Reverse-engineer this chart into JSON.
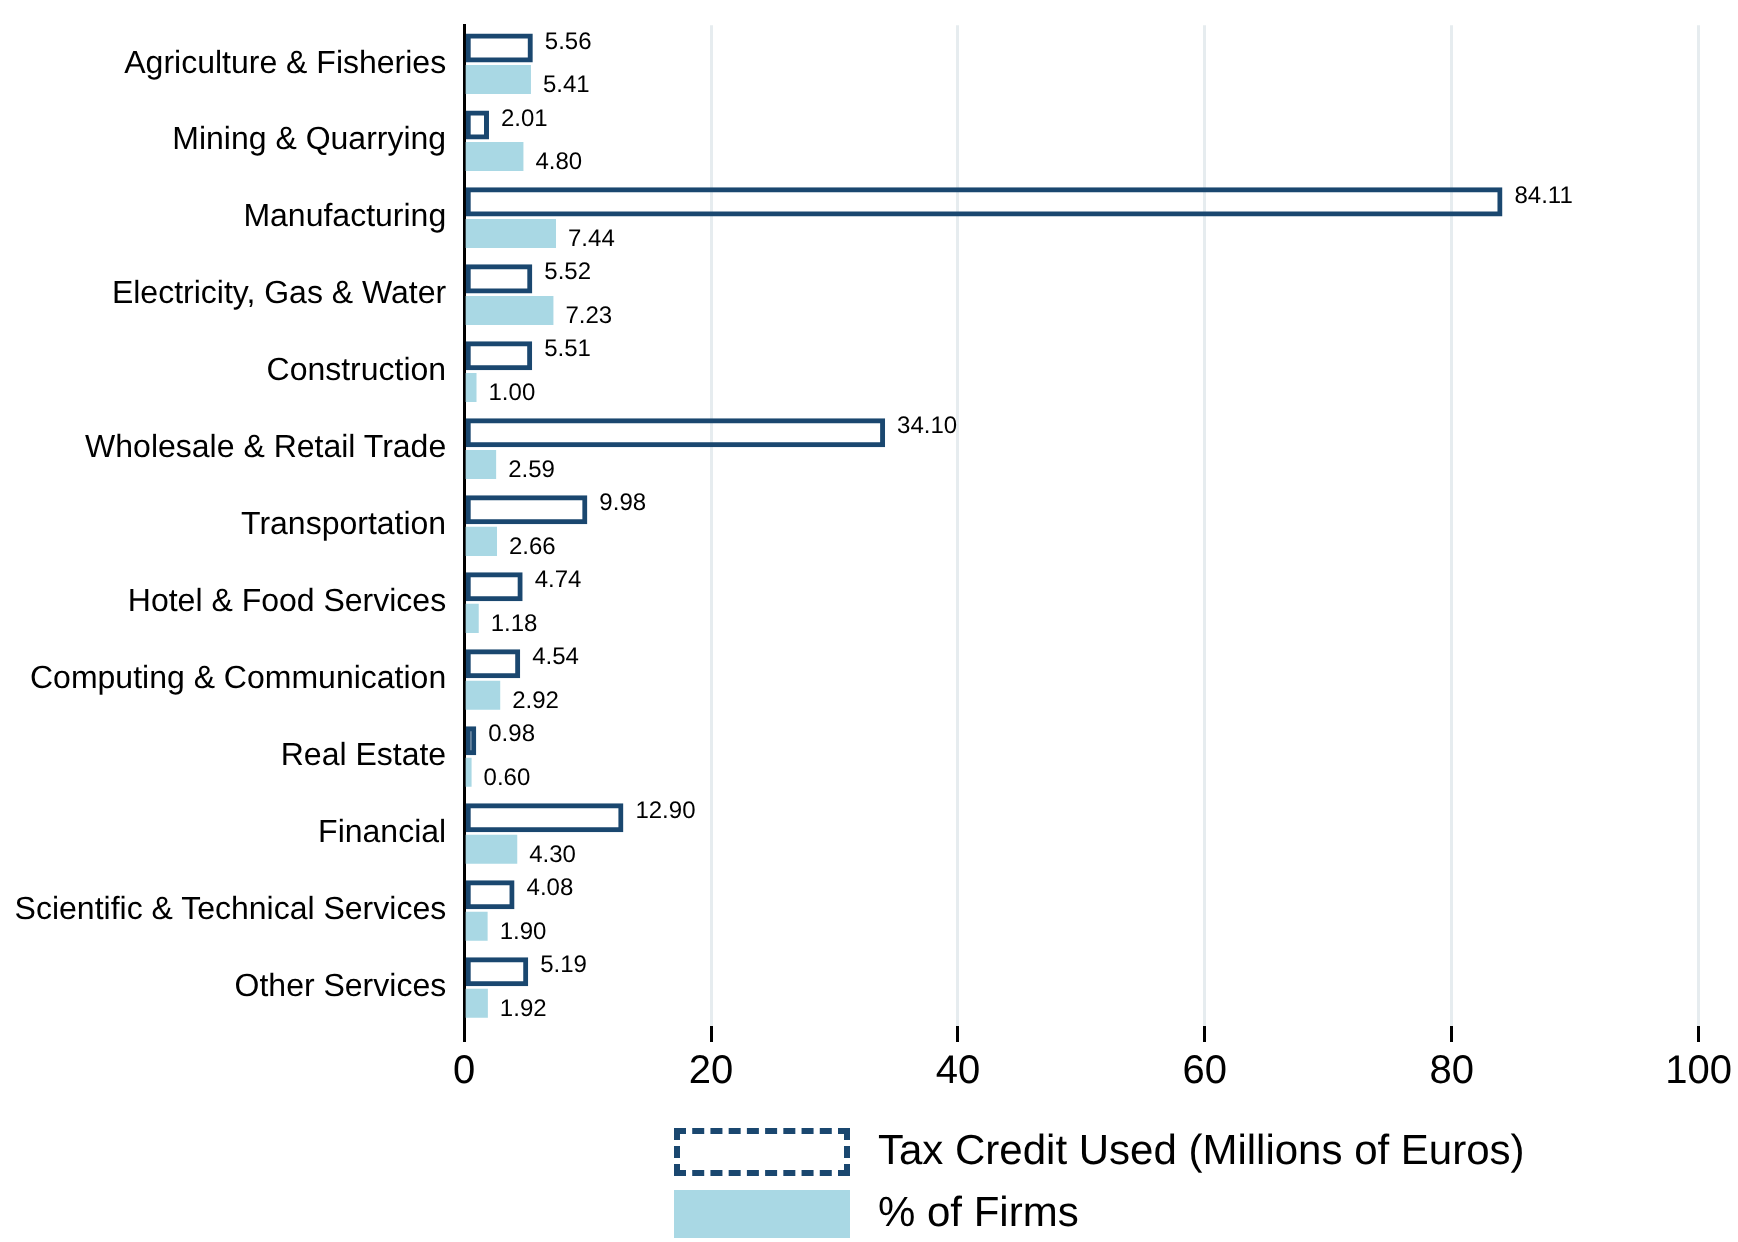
{
  "chart_data": {
    "type": "bar",
    "orientation": "horizontal",
    "categories": [
      "Agriculture & Fisheries",
      "Mining & Quarrying",
      "Manufacturing",
      "Electricity, Gas & Water",
      "Construction",
      "Wholesale & Retail Trade",
      "Transportation",
      "Hotel & Food Services",
      "Computing & Communication",
      "Real Estate",
      "Financial",
      "Scientific & Technical Services",
      "Other Services"
    ],
    "series": [
      {
        "name": "Tax Credit Used (Millions of Euros)",
        "color": "#1a476f",
        "line_style": "dashed",
        "values": [
          5.56,
          2.01,
          84.11,
          5.52,
          5.51,
          34.1,
          9.98,
          4.74,
          4.54,
          0.98,
          12.9,
          4.08,
          5.19
        ],
        "value_labels": [
          "5.56",
          "2.01",
          "84.11",
          "5.52",
          "5.51",
          "34.10",
          "9.98",
          "4.74",
          "4.54",
          "0.98",
          "12.90",
          "4.08",
          "5.19"
        ]
      },
      {
        "name": "% of Firms",
        "color": "#a9d8e4",
        "values": [
          5.41,
          4.8,
          7.44,
          7.23,
          1.0,
          2.59,
          2.66,
          1.18,
          2.92,
          0.6,
          4.3,
          1.9,
          1.92
        ],
        "value_labels": [
          "5.41",
          "4.80",
          "7.44",
          "7.23",
          "1.00",
          "2.59",
          "2.66",
          "1.18",
          "2.92",
          "0.60",
          "4.30",
          "1.90",
          "1.92"
        ]
      }
    ],
    "xlim": [
      0,
      100
    ],
    "xticks": [
      0,
      20,
      40,
      60,
      80,
      100
    ],
    "grid": "x",
    "legend": "bottom"
  }
}
